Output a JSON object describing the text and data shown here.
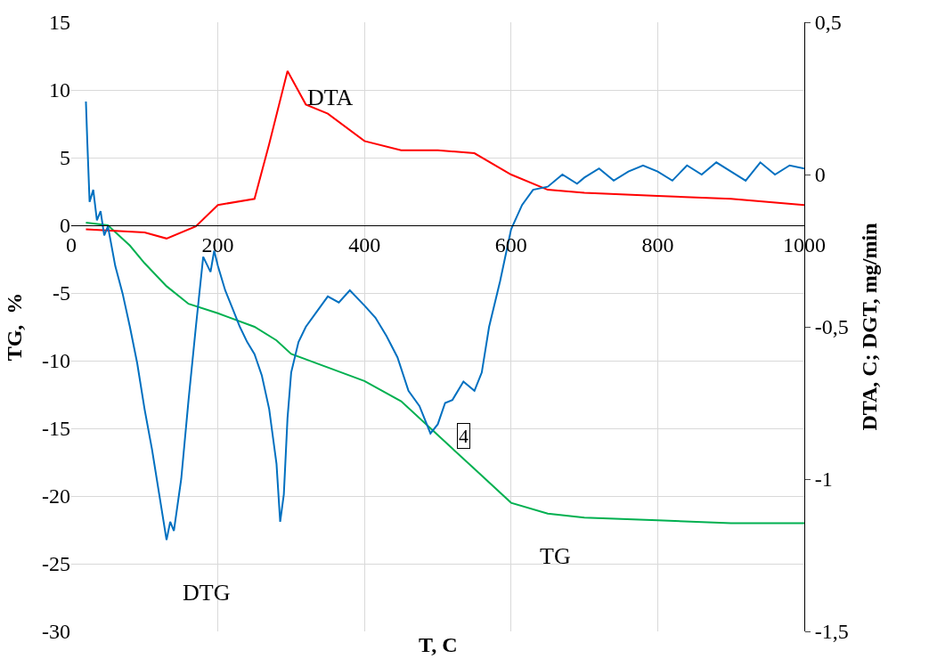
{
  "chart_data": {
    "type": "line",
    "xlabel": "T, C",
    "ylabel": "TG,  %",
    "y2label": "DTA, C; DGT, mg/min",
    "xlim": [
      0,
      1000
    ],
    "xticks": [
      0,
      200,
      400,
      600,
      800,
      1000
    ],
    "ylim": [
      -30,
      15
    ],
    "yticks": [
      -30,
      -25,
      -20,
      -15,
      -10,
      -5,
      0,
      5,
      10,
      15
    ],
    "y2lim": [
      -1.5,
      0.5
    ],
    "y2ticks": [
      {
        "value": -1.5,
        "label": "-1,5"
      },
      -1,
      {
        "value": -0.5,
        "label": "-0,5"
      },
      0,
      {
        "value": 0.5,
        "label": "0,5"
      }
    ],
    "grid": true,
    "legend": false,
    "marker": "none",
    "line_style": "solid",
    "series": [
      {
        "name": "DTA",
        "color": "#ff0000",
        "axis": "y2",
        "x": [
          20,
          100,
          130,
          170,
          200,
          250,
          270,
          295,
          320,
          350,
          400,
          450,
          500,
          550,
          600,
          650,
          700,
          800,
          900,
          1000
        ],
        "values": [
          -0.18,
          -0.19,
          -0.21,
          -0.17,
          -0.1,
          -0.08,
          0.1,
          0.34,
          0.23,
          0.2,
          0.11,
          0.08,
          0.08,
          0.07,
          0.0,
          -0.05,
          -0.06,
          -0.07,
          -0.08,
          -0.1
        ]
      },
      {
        "name": "TG",
        "color": "#00b050",
        "x": [
          20,
          50,
          80,
          100,
          130,
          160,
          200,
          250,
          280,
          300,
          350,
          400,
          450,
          500,
          550,
          600,
          650,
          700,
          800,
          900,
          1000
        ],
        "values": [
          0.2,
          0,
          -1.5,
          -2.8,
          -4.5,
          -5.8,
          -6.5,
          -7.5,
          -8.5,
          -9.5,
          -10.5,
          -11.5,
          -13,
          -15.5,
          -18,
          -20.5,
          -21.3,
          -21.6,
          -21.8,
          -22,
          -22
        ]
      },
      {
        "name": "DTG",
        "color": "#0070c0",
        "axis": "y2",
        "x": [
          20,
          22,
          25,
          30,
          35,
          40,
          45,
          50,
          60,
          70,
          80,
          90,
          100,
          110,
          120,
          130,
          135,
          140,
          150,
          160,
          170,
          180,
          190,
          195,
          200,
          210,
          220,
          230,
          240,
          250,
          260,
          270,
          280,
          285,
          290,
          295,
          300,
          310,
          320,
          335,
          350,
          365,
          380,
          400,
          415,
          430,
          445,
          460,
          475,
          490,
          500,
          510,
          520,
          535,
          550,
          560,
          570,
          585,
          600,
          615,
          630,
          650,
          670,
          690,
          700,
          720,
          740,
          760,
          780,
          800,
          820,
          840,
          860,
          880,
          900,
          920,
          940,
          960,
          980,
          1000
        ],
        "values": [
          0.24,
          0.1,
          -0.09,
          -0.05,
          -0.15,
          -0.12,
          -0.2,
          -0.17,
          -0.3,
          -0.39,
          -0.5,
          -0.62,
          -0.77,
          -0.9,
          -1.05,
          -1.2,
          -1.14,
          -1.17,
          -1.0,
          -0.74,
          -0.5,
          -0.27,
          -0.32,
          -0.25,
          -0.3,
          -0.38,
          -0.44,
          -0.5,
          -0.55,
          -0.59,
          -0.66,
          -0.77,
          -0.95,
          -1.14,
          -1.05,
          -0.8,
          -0.65,
          -0.55,
          -0.5,
          -0.45,
          -0.4,
          -0.42,
          -0.38,
          -0.43,
          -0.47,
          -0.53,
          -0.6,
          -0.71,
          -0.76,
          -0.85,
          -0.82,
          -0.75,
          -0.74,
          -0.68,
          -0.71,
          -0.65,
          -0.5,
          -0.35,
          -0.18,
          -0.1,
          -0.05,
          -0.04,
          0.0,
          -0.03,
          -0.01,
          0.02,
          -0.02,
          0.01,
          0.03,
          0.01,
          -0.02,
          0.03,
          0.0,
          0.04,
          0.01,
          -0.02,
          0.04,
          0.0,
          0.03,
          0.02
        ]
      }
    ],
    "annotations": [
      "4"
    ]
  }
}
